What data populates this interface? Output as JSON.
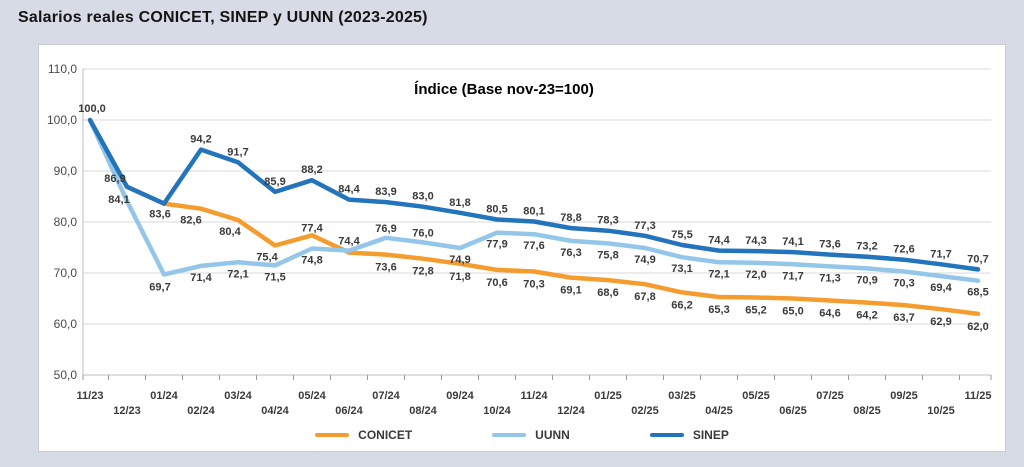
{
  "chart_data": {
    "type": "line",
    "title": "Salarios reales CONICET, SINEP y UUNN (2023-2025)",
    "subtitle": "Índice (Base nov-23=100)",
    "categories": [
      "11/23",
      "12/23",
      "01/24",
      "02/24",
      "03/24",
      "04/24",
      "05/24",
      "06/24",
      "07/24",
      "08/24",
      "09/24",
      "10/24",
      "11/24",
      "12/24",
      "01/25",
      "02/25",
      "03/25",
      "04/25",
      "05/25",
      "06/25",
      "07/25",
      "08/25",
      "09/25",
      "10/25",
      "11/25"
    ],
    "series": [
      {
        "name": "CONICET",
        "color": "#F59C2F",
        "values": [
          100.0,
          86.9,
          83.6,
          82.6,
          80.4,
          75.4,
          77.4,
          74.0,
          73.6,
          72.8,
          71.8,
          70.6,
          70.3,
          69.1,
          68.6,
          67.8,
          66.2,
          65.3,
          65.2,
          65.0,
          64.6,
          64.2,
          63.7,
          62.9,
          62.0
        ],
        "labels": [
          null,
          null,
          "83,6",
          "82,6",
          "80,4",
          "75,4",
          "77,4",
          null,
          "73,6",
          "72,8",
          "71,8",
          "70,6",
          "70,3",
          "69,1",
          "68,6",
          "67,8",
          "66,2",
          "65,3",
          "65,2",
          "65,0",
          "64,6",
          "64,2",
          "63,7",
          "62,9",
          "62,0"
        ]
      },
      {
        "name": "UUNN",
        "color": "#93C6E9",
        "values": [
          100.0,
          84.1,
          69.7,
          71.4,
          72.1,
          71.5,
          74.8,
          74.4,
          76.9,
          76.0,
          74.9,
          77.9,
          77.6,
          76.3,
          75.8,
          74.9,
          73.1,
          72.1,
          72.0,
          71.7,
          71.3,
          70.9,
          70.3,
          69.4,
          68.5
        ],
        "labels": [
          null,
          "84,1",
          "69,7",
          "71,4",
          "72,1",
          "71,5",
          "74,8",
          "74,4",
          "76,9",
          "76,0",
          "74,9",
          "77,9",
          "77,6",
          "76,3",
          "75,8",
          "74,9",
          "73,1",
          "72,1",
          "72,0",
          "71,7",
          "71,3",
          "70,9",
          "70,3",
          "69,4",
          "68,5"
        ]
      },
      {
        "name": "SINEP",
        "color": "#2274BC",
        "values": [
          100.0,
          86.9,
          83.6,
          94.2,
          91.7,
          85.9,
          88.2,
          84.4,
          83.9,
          83.0,
          81.8,
          80.5,
          80.1,
          78.8,
          78.3,
          77.3,
          75.5,
          74.4,
          74.3,
          74.1,
          73.6,
          73.2,
          72.6,
          71.7,
          70.7
        ],
        "labels": [
          "100,0",
          "86,9",
          null,
          "94,2",
          "91,7",
          "85,9",
          "88,2",
          "84,4",
          "83,9",
          "83,0",
          "81,8",
          "80,5",
          "80,1",
          "78,8",
          "78,3",
          "77,3",
          "75,5",
          "74,4",
          "74,3",
          "74,1",
          "73,6",
          "73,2",
          "72,6",
          "71,7",
          "70,7"
        ]
      }
    ],
    "y_axis": {
      "min": 50,
      "max": 110,
      "step": 10,
      "tick_labels": [
        "110,0",
        "100,0",
        "90,0",
        "80,0",
        "70,0",
        "60,0",
        "50,0"
      ]
    },
    "legend": [
      "CONICET",
      "UUNN",
      "SINEP"
    ],
    "legend_position": "bottom",
    "grid": true
  }
}
